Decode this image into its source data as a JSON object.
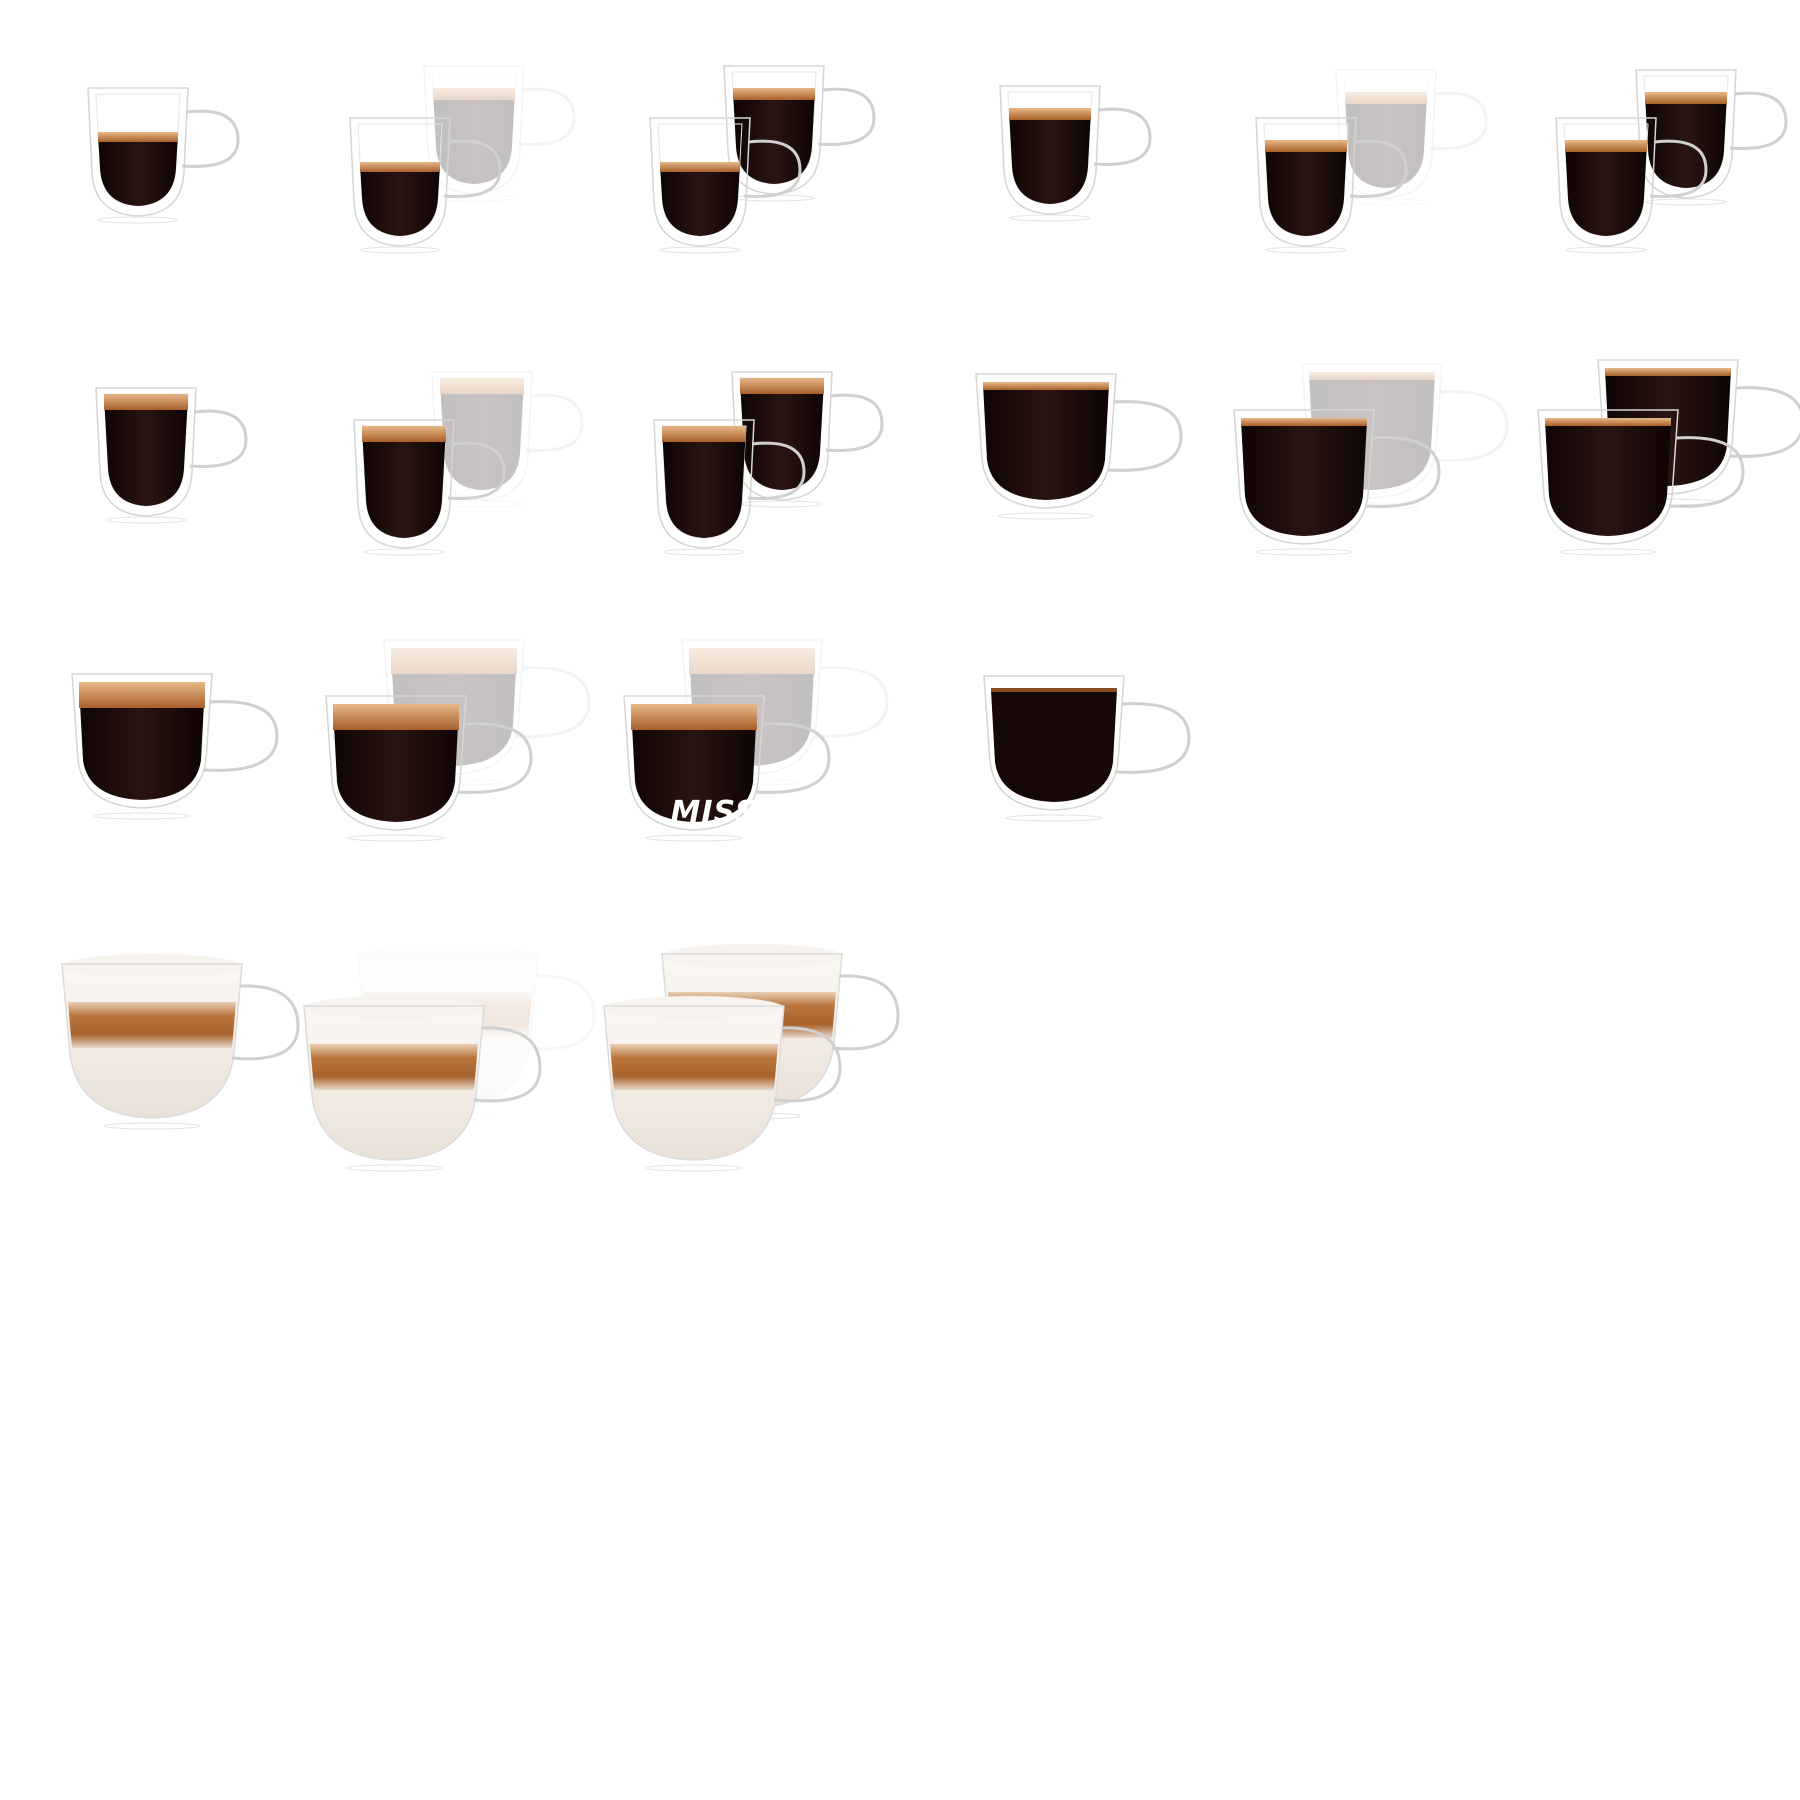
{
  "sprite_sheet": {
    "background": "#ffffff",
    "missing_label": "MISSING",
    "colors": {
      "coffee_dark": "#160908",
      "coffee_mid": "#2a1411",
      "crema": "#c07a3c",
      "crema_light": "#e3b07a",
      "milk": "#f3ece4",
      "glass": "#d9d9d9"
    },
    "rows": [
      {
        "icons": [
          "espresso-cup-icon",
          "espresso-double-faded-back-icon",
          "espresso-double-icon",
          "espresso-tall-cup-icon",
          "espresso-tall-double-faded-back-icon",
          "espresso-tall-double-icon"
        ]
      },
      {
        "icons": [
          "lungo-cup-icon",
          "lungo-double-faded-back-icon",
          "lungo-double-icon",
          "coffee-wide-cup-icon",
          "coffee-wide-double-faded-back-icon",
          "coffee-wide-double-icon"
        ]
      },
      {
        "icons": [
          "americano-cup-icon",
          "americano-double-faded-back-icon",
          "americano-double-faded-back-missing-icon",
          "black-coffee-cup-icon"
        ]
      },
      {
        "icons": [
          "latte-macchiato-cup-icon",
          "latte-macchiato-double-faded-back-icon",
          "latte-macchiato-double-icon"
        ]
      }
    ]
  }
}
